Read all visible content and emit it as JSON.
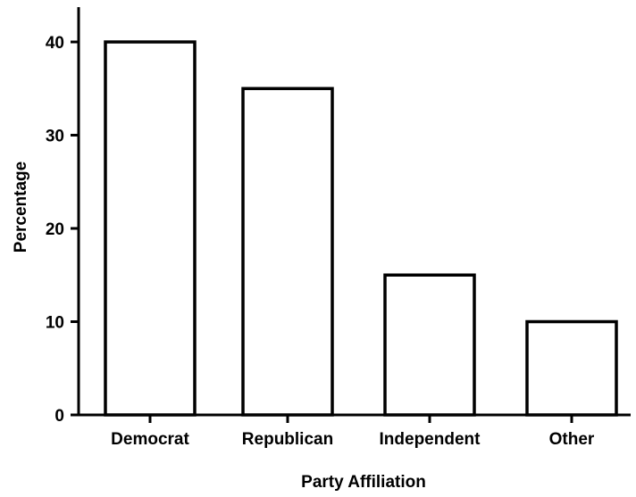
{
  "chart_data": {
    "type": "bar",
    "title": "",
    "xlabel": "Party Affiliation",
    "ylabel": "Percentage",
    "categories": [
      "Democrat",
      "Republican",
      "Independent",
      "Other"
    ],
    "values": [
      40,
      35,
      15,
      10
    ],
    "ylim": [
      0,
      44
    ],
    "yticks": [
      0,
      10,
      20,
      30,
      40
    ],
    "ytick_labels": [
      "0",
      "10",
      "20",
      "30",
      "40"
    ],
    "grid": false,
    "legend": "none",
    "bar_fill": "#ffffff",
    "bar_edge": "#000000"
  }
}
